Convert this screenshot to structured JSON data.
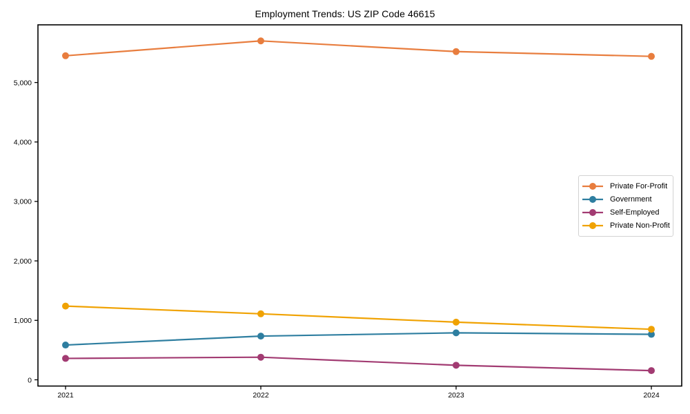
{
  "title": "Employment Trends: US ZIP Code 46615",
  "chart_data": {
    "type": "line",
    "title": "Employment Trends: US ZIP Code 46615",
    "categories": [
      "2021",
      "2022",
      "2023",
      "2024"
    ],
    "series": [
      {
        "name": "Private For-Profit",
        "color": "#E87D3E",
        "values": [
          5450,
          5700,
          5520,
          5440
        ]
      },
      {
        "name": "Government",
        "color": "#2E7EA0",
        "values": [
          585,
          735,
          790,
          765
        ]
      },
      {
        "name": "Self-Employed",
        "color": "#A23B72",
        "values": [
          360,
          380,
          245,
          155
        ]
      },
      {
        "name": "Private Non-Profit",
        "color": "#F0A202",
        "values": [
          1240,
          1110,
          970,
          850
        ]
      }
    ],
    "xlabel": "",
    "ylabel": "",
    "yticks": [
      0,
      1000,
      2000,
      3000,
      4000,
      5000
    ],
    "ytick_format": "comma-thousands",
    "ylim": [
      -105,
      5970
    ],
    "grid": false,
    "marker": "circle",
    "legend_position": "right-middle",
    "axis_color": "#000000",
    "background_color": "#ffffff"
  }
}
